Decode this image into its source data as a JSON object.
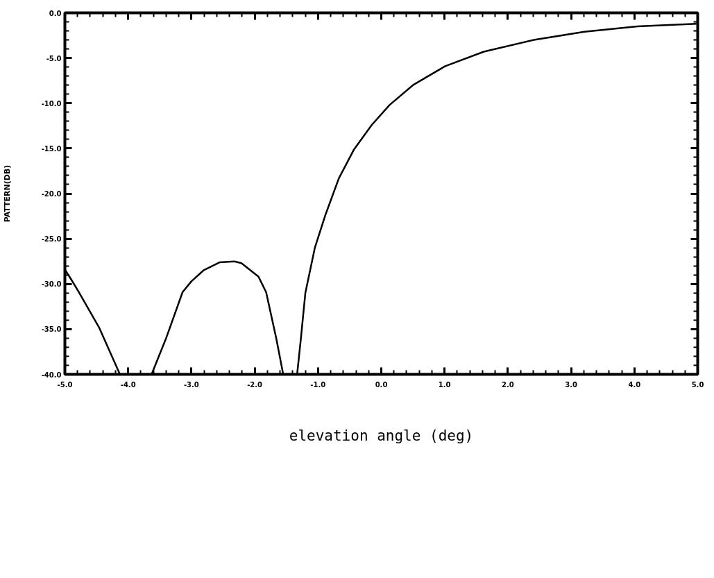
{
  "chart_data": {
    "type": "line",
    "xlabel": "elevation angle (deg)",
    "ylabel": "PATTERN(DB)",
    "x": [
      -5.0,
      -4.9,
      -4.78,
      -4.46,
      -4.13,
      null,
      -3.63,
      -3.4,
      -3.14,
      -3.0,
      -2.81,
      -2.55,
      -2.32,
      -2.21,
      -1.94,
      -1.82,
      -1.66,
      -1.55,
      null,
      -1.33,
      -1.27,
      -1.2,
      -1.05,
      -0.88,
      -0.67,
      -0.43,
      -0.15,
      0.13,
      0.5,
      1.01,
      1.62,
      2.41,
      3.21,
      4.05,
      4.98
    ],
    "series": [
      {
        "color": "#000000",
        "values": [
          -28.4,
          -29.5,
          -30.9,
          -34.8,
          -40,
          null,
          -40,
          -36.0,
          -30.9,
          -29.7,
          -28.5,
          -27.6,
          -27.5,
          -27.7,
          -29.2,
          -30.9,
          -36.0,
          -40,
          null,
          -40,
          -36.0,
          -31.0,
          -26.0,
          -22.3,
          -18.3,
          -15.1,
          -12.4,
          -10.2,
          -8.0,
          -5.9,
          -4.3,
          -3.0,
          -2.1,
          -1.5,
          -1.2
        ]
      }
    ],
    "xlim": [
      -5,
      5
    ],
    "ylim": [
      -40,
      0
    ],
    "xticks": [
      {
        "value": -5,
        "label": "-5.0"
      },
      {
        "value": -4,
        "label": "-4.0"
      },
      {
        "value": -3,
        "label": "-3.0"
      },
      {
        "value": -2,
        "label": "-2.0"
      },
      {
        "value": -1,
        "label": "-1.0"
      },
      {
        "value": 0,
        "label": "0.0"
      },
      {
        "value": 1,
        "label": "1.0"
      },
      {
        "value": 2,
        "label": "2.0"
      },
      {
        "value": 3,
        "label": "3.0"
      },
      {
        "value": 4,
        "label": "4.0"
      },
      {
        "value": 5,
        "label": "5.0"
      }
    ],
    "yticks": [
      {
        "value": 0,
        "label": "0.0"
      },
      {
        "value": -5,
        "label": "-5.0"
      },
      {
        "value": -10,
        "label": "-10.0"
      },
      {
        "value": -15,
        "label": "-15.0"
      },
      {
        "value": -20,
        "label": "-20.0"
      },
      {
        "value": -25,
        "label": "-25.0"
      },
      {
        "value": -30,
        "label": "-30.0"
      },
      {
        "value": -35,
        "label": "-35.0"
      },
      {
        "value": -40,
        "label": "-40.0"
      }
    ],
    "grid": false,
    "marker": "none",
    "line_style": "solid"
  }
}
